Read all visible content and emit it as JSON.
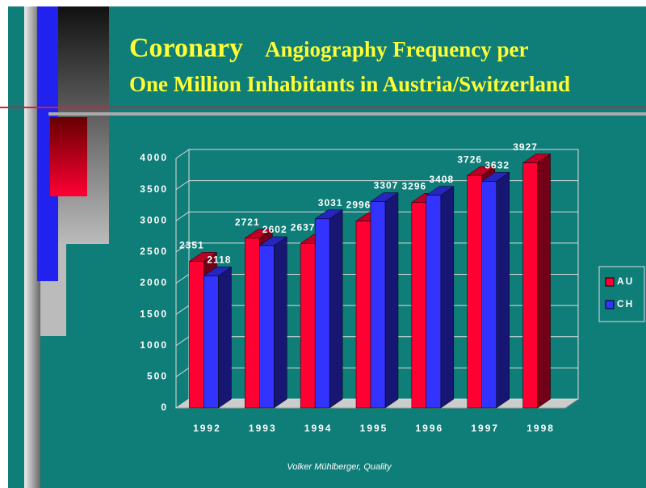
{
  "chart_data": {
    "type": "bar3d",
    "title": [
      "Coronary",
      "Angiography Frequency per",
      "One Million Inhabitants in Austria/Switzerland"
    ],
    "categories": [
      "1992",
      "1993",
      "1994",
      "1995",
      "1996",
      "1997",
      "1998"
    ],
    "series": [
      {
        "name": "AU",
        "color": "#ff0033",
        "values": [
          2351,
          2721,
          2637,
          2996,
          3296,
          3726,
          3927
        ]
      },
      {
        "name": "CH",
        "color": "#3333ff",
        "values": [
          2118,
          2602,
          3031,
          3307,
          3408,
          3632,
          null
        ]
      }
    ],
    "ylim": [
      0,
      4000
    ],
    "yticks": [
      0,
      500,
      1000,
      1500,
      2000,
      2500,
      3000,
      3500,
      4000
    ],
    "grid": true,
    "legend": "right",
    "footer": "Volker Mühlberger, Quality"
  }
}
